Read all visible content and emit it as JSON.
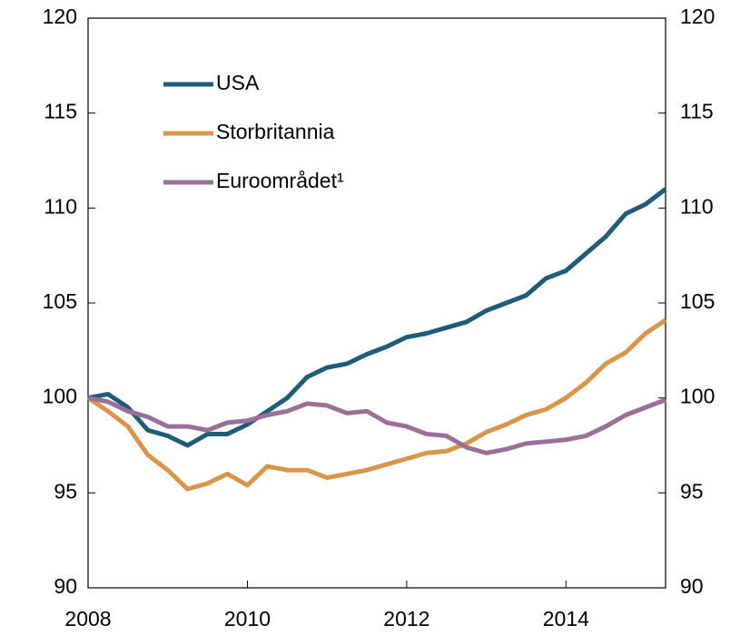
{
  "chart_data": {
    "type": "line",
    "x": [
      2008,
      2008.25,
      2008.5,
      2008.75,
      2009,
      2009.25,
      2009.5,
      2009.75,
      2010,
      2010.25,
      2010.5,
      2010.75,
      2011,
      2011.25,
      2011.5,
      2011.75,
      2012,
      2012.25,
      2012.5,
      2012.75,
      2013,
      2013.25,
      2013.5,
      2013.75,
      2014,
      2014.25,
      2014.5,
      2014.75,
      2015,
      2015.25
    ],
    "series": [
      {
        "name": "USA",
        "color": "#1f5c7a",
        "values": [
          100.0,
          100.2,
          99.5,
          98.3,
          98.0,
          97.5,
          98.1,
          98.1,
          98.6,
          99.3,
          100.0,
          101.1,
          101.6,
          101.8,
          102.3,
          102.7,
          103.2,
          103.4,
          103.7,
          104.0,
          104.6,
          105.0,
          105.4,
          106.3,
          106.7,
          107.6,
          108.5,
          109.7,
          110.2,
          111.0
        ]
      },
      {
        "name": "Storbritannia",
        "color": "#d9954a",
        "values": [
          100.0,
          99.3,
          98.5,
          97.0,
          96.2,
          95.2,
          95.5,
          96.0,
          95.4,
          96.4,
          96.2,
          96.2,
          95.8,
          96.0,
          96.2,
          96.5,
          96.8,
          97.1,
          97.2,
          97.6,
          98.2,
          98.6,
          99.1,
          99.4,
          100.0,
          100.8,
          101.8,
          102.4,
          103.4,
          104.1
        ]
      },
      {
        "name": "Euroområdet¹",
        "color": "#9a7098",
        "values": [
          100.0,
          99.8,
          99.3,
          99.0,
          98.5,
          98.5,
          98.3,
          98.7,
          98.8,
          99.1,
          99.3,
          99.7,
          99.6,
          99.2,
          99.3,
          98.7,
          98.5,
          98.1,
          98.0,
          97.4,
          97.1,
          97.3,
          97.6,
          97.7,
          97.8,
          98.0,
          98.5,
          99.1,
          99.5,
          99.9
        ]
      }
    ],
    "xlim": [
      2008,
      2015.25
    ],
    "xticks": [
      2008,
      2010,
      2012,
      2014
    ],
    "ylim": [
      90,
      120
    ],
    "yticks": [
      90,
      95,
      100,
      105,
      110,
      115,
      120
    ],
    "y2lim": [
      90,
      120
    ],
    "y2ticks": [
      90,
      95,
      100,
      105,
      110,
      115,
      120
    ],
    "legend": "upper left"
  }
}
